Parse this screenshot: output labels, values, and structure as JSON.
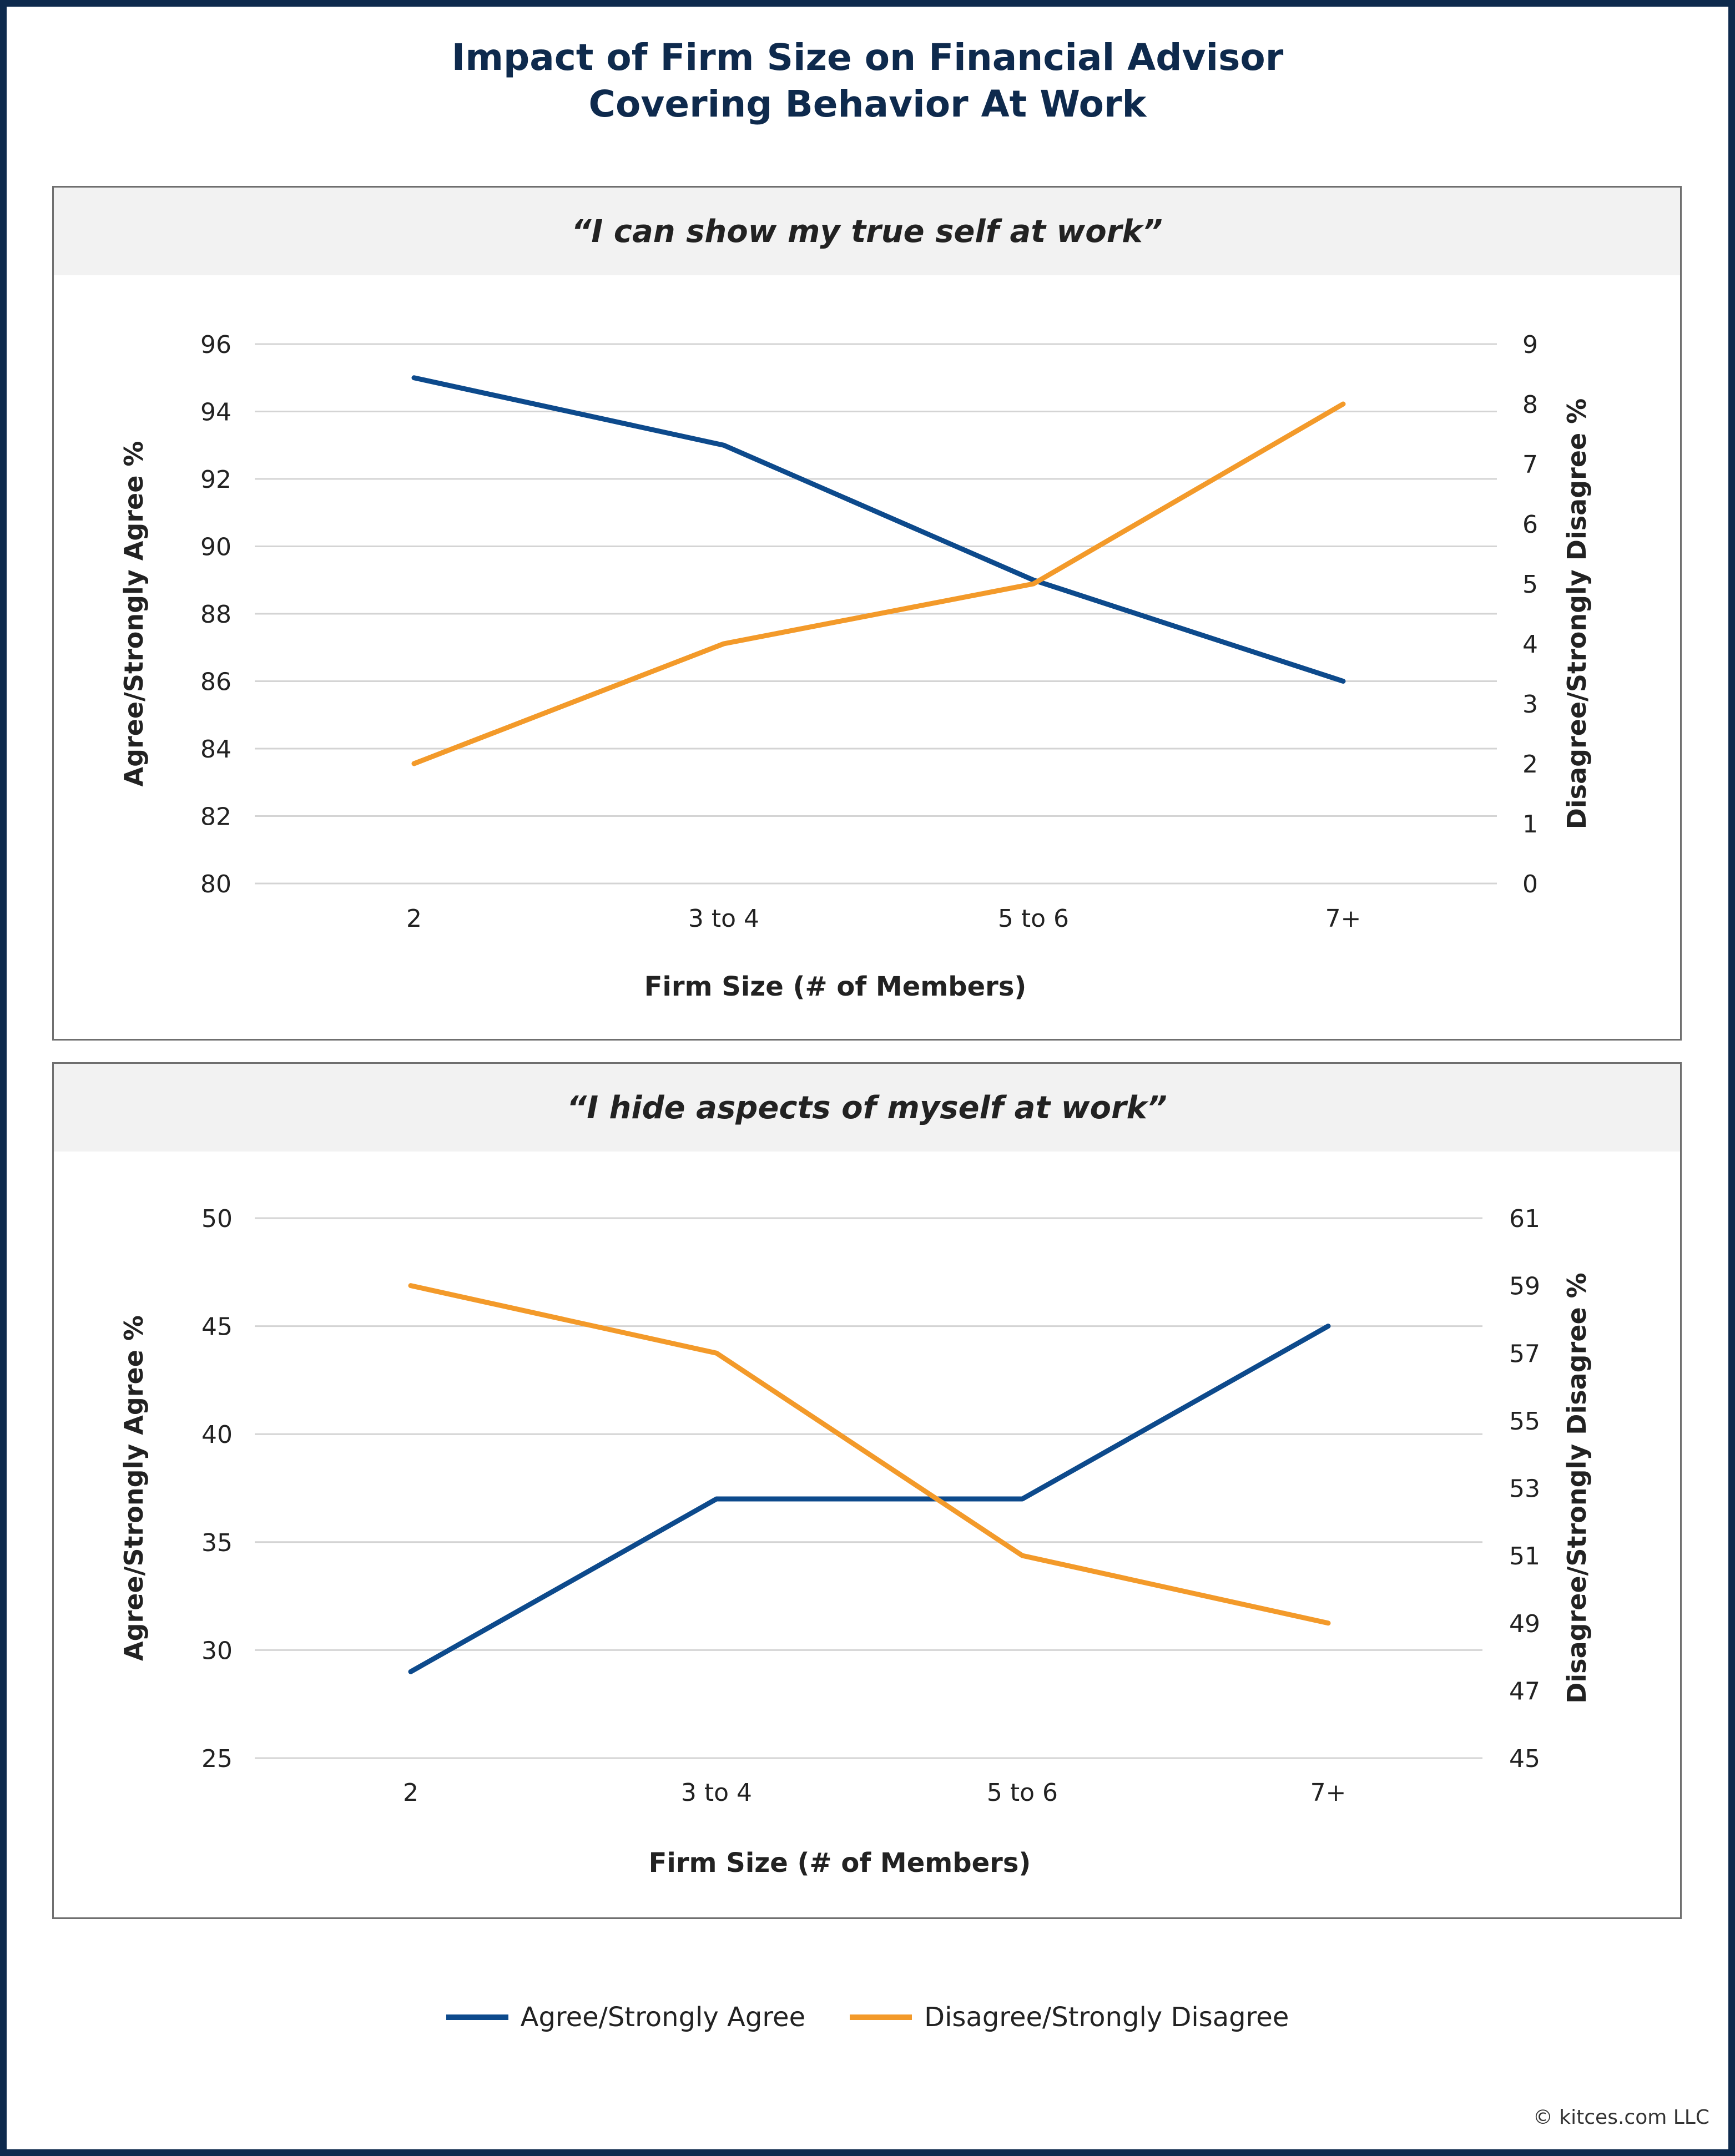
{
  "title_lines": [
    "Impact of Firm Size on Financial Advisor",
    "Covering Behavior At Work"
  ],
  "colors": {
    "agree": "#0d4a8c",
    "disagree": "#f39a2a",
    "grid": "#d4d4d4",
    "frame": "#0e2a4d"
  },
  "chart_data": [
    {
      "type": "line",
      "title": "“I can show my true self at work”",
      "categories": [
        "2",
        "3 to 4",
        "5 to 6",
        "7+"
      ],
      "xlabel": "Firm Size (# of Members)",
      "ylabel": "Agree/Strongly Agree %",
      "y2label": "Disagree/Strongly Disagree %",
      "ylim": [
        80,
        96
      ],
      "yticks": [
        80,
        82,
        84,
        86,
        88,
        90,
        92,
        94,
        96
      ],
      "y2lim": [
        0,
        9
      ],
      "y2ticks": [
        0,
        1,
        2,
        3,
        4,
        5,
        6,
        7,
        8,
        9
      ],
      "grid": true,
      "series": [
        {
          "name": "Agree/Strongly Agree",
          "axis": "left",
          "values": [
            95,
            93,
            89,
            86
          ]
        },
        {
          "name": "Disagree/Strongly Disagree",
          "axis": "right",
          "values": [
            2,
            4,
            5,
            8
          ]
        }
      ]
    },
    {
      "type": "line",
      "title": "“I hide aspects of myself at work”",
      "categories": [
        "2",
        "3 to 4",
        "5 to 6",
        "7+"
      ],
      "xlabel": "Firm Size (# of Members)",
      "ylabel": "Agree/Strongly Agree %",
      "y2label": "Disagree/Strongly Disagree %",
      "ylim": [
        25,
        50
      ],
      "yticks": [
        25,
        30,
        35,
        40,
        45,
        50
      ],
      "y2lim": [
        45,
        61
      ],
      "y2ticks": [
        45,
        47,
        49,
        51,
        53,
        55,
        57,
        59,
        61
      ],
      "grid": true,
      "series": [
        {
          "name": "Agree/Strongly Agree",
          "axis": "left",
          "values": [
            29,
            37,
            37,
            45
          ]
        },
        {
          "name": "Disagree/Strongly Disagree",
          "axis": "right",
          "values": [
            59,
            57,
            51,
            49
          ]
        }
      ]
    }
  ],
  "legend": {
    "placement": "bottom-center",
    "items": [
      {
        "label": "Agree/Strongly Agree",
        "color": "#0d4a8c"
      },
      {
        "label": "Disagree/Strongly Disagree",
        "color": "#f39a2a"
      }
    ]
  },
  "copyright": "© kitces.com LLC"
}
